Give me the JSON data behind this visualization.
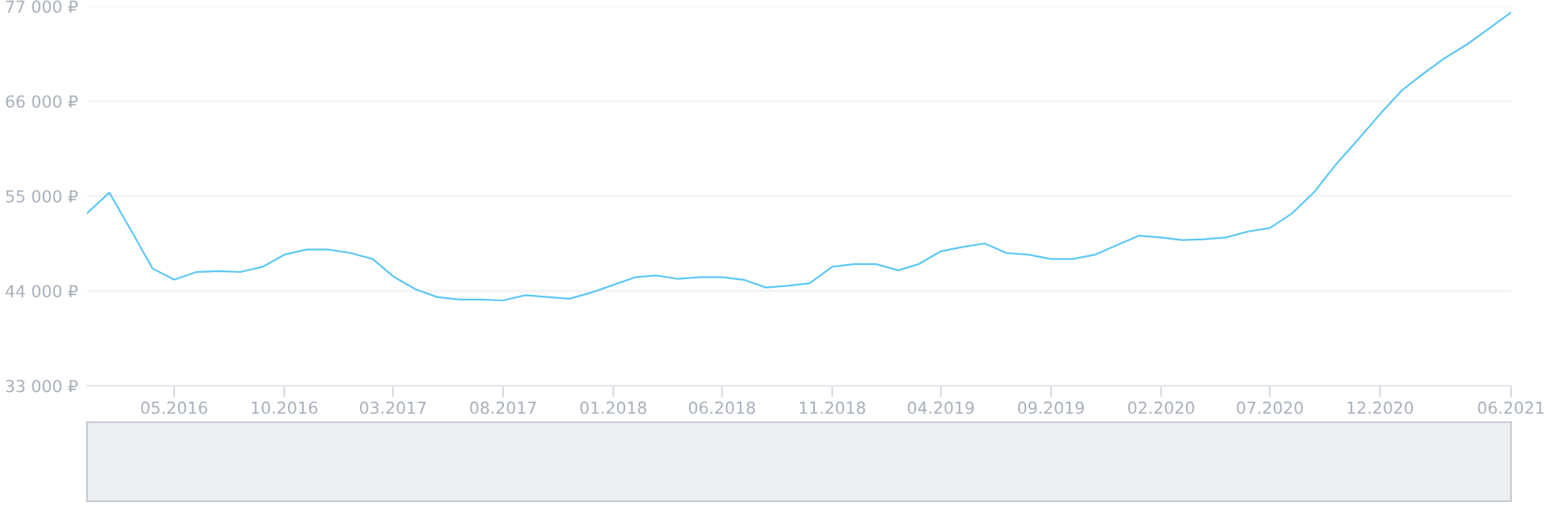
{
  "chart_data": {
    "type": "line",
    "x": [
      "2016-01",
      "2016-02",
      "2016-03",
      "2016-04",
      "2016-05",
      "2016-06",
      "2016-07",
      "2016-08",
      "2016-09",
      "2016-10",
      "2016-11",
      "2016-12",
      "2017-01",
      "2017-02",
      "2017-03",
      "2017-04",
      "2017-05",
      "2017-06",
      "2017-07",
      "2017-08",
      "2017-09",
      "2017-10",
      "2017-11",
      "2017-12",
      "2018-01",
      "2018-02",
      "2018-03",
      "2018-04",
      "2018-05",
      "2018-06",
      "2018-07",
      "2018-08",
      "2018-09",
      "2018-10",
      "2018-11",
      "2018-12",
      "2019-01",
      "2019-02",
      "2019-03",
      "2019-04",
      "2019-05",
      "2019-06",
      "2019-07",
      "2019-08",
      "2019-09",
      "2019-10",
      "2019-11",
      "2019-12",
      "2020-01",
      "2020-02",
      "2020-03",
      "2020-04",
      "2020-05",
      "2020-06",
      "2020-07",
      "2020-08",
      "2020-09",
      "2020-10",
      "2020-11",
      "2020-12",
      "2021-01",
      "2021-02",
      "2021-03",
      "2021-04",
      "2021-05",
      "2021-06"
    ],
    "series": [
      {
        "color": "#5bc8f5",
        "values": [
          53000,
          55400,
          51200,
          46600,
          45300,
          46200,
          46300,
          46200,
          46800,
          48200,
          48800,
          48800,
          48400,
          47700,
          45700,
          44200,
          43300,
          43000,
          43000,
          42900,
          43500,
          43300,
          43100,
          43800,
          44700,
          45600,
          45800,
          45400,
          45600,
          45600,
          45300,
          44400,
          44600,
          44900,
          46800,
          47100,
          47100,
          46400,
          47100,
          48600,
          49100,
          49500,
          48400,
          48200,
          47700,
          47700,
          48200,
          49300,
          50400,
          50200,
          49900,
          50000,
          50200,
          50900,
          51300,
          53000,
          55500,
          58700,
          61600,
          64500,
          67300,
          69300,
          71000,
          72600,
          74400,
          76300
        ]
      }
    ],
    "xlim": [
      "2016-01",
      "2021-06"
    ],
    "xticks": [
      {
        "value": "2016-05",
        "label": "05.2016"
      },
      {
        "value": "2016-10",
        "label": "10.2016"
      },
      {
        "value": "2017-03",
        "label": "03.2017"
      },
      {
        "value": "2017-08",
        "label": "08.2017"
      },
      {
        "value": "2018-01",
        "label": "01.2018"
      },
      {
        "value": "2018-06",
        "label": "06.2018"
      },
      {
        "value": "2018-11",
        "label": "11.2018"
      },
      {
        "value": "2019-04",
        "label": "04.2019"
      },
      {
        "value": "2019-09",
        "label": "09.2019"
      },
      {
        "value": "2020-02",
        "label": "02.2020"
      },
      {
        "value": "2020-07",
        "label": "07.2020"
      },
      {
        "value": "2020-12",
        "label": "12.2020"
      },
      {
        "value": "2021-06",
        "label": "06.2021"
      }
    ],
    "ylim": [
      33000,
      77000
    ],
    "yticks": [
      {
        "value": 33000,
        "label": "33 000 ₽"
      },
      {
        "value": 44000,
        "label": "44 000 ₽"
      },
      {
        "value": 55000,
        "label": "55 000 ₽"
      },
      {
        "value": 66000,
        "label": "66 000 ₽"
      },
      {
        "value": 77000,
        "label": "77 000 ₽"
      }
    ],
    "grid": "y",
    "marker": "none",
    "line_style": "solid",
    "legend": false
  }
}
